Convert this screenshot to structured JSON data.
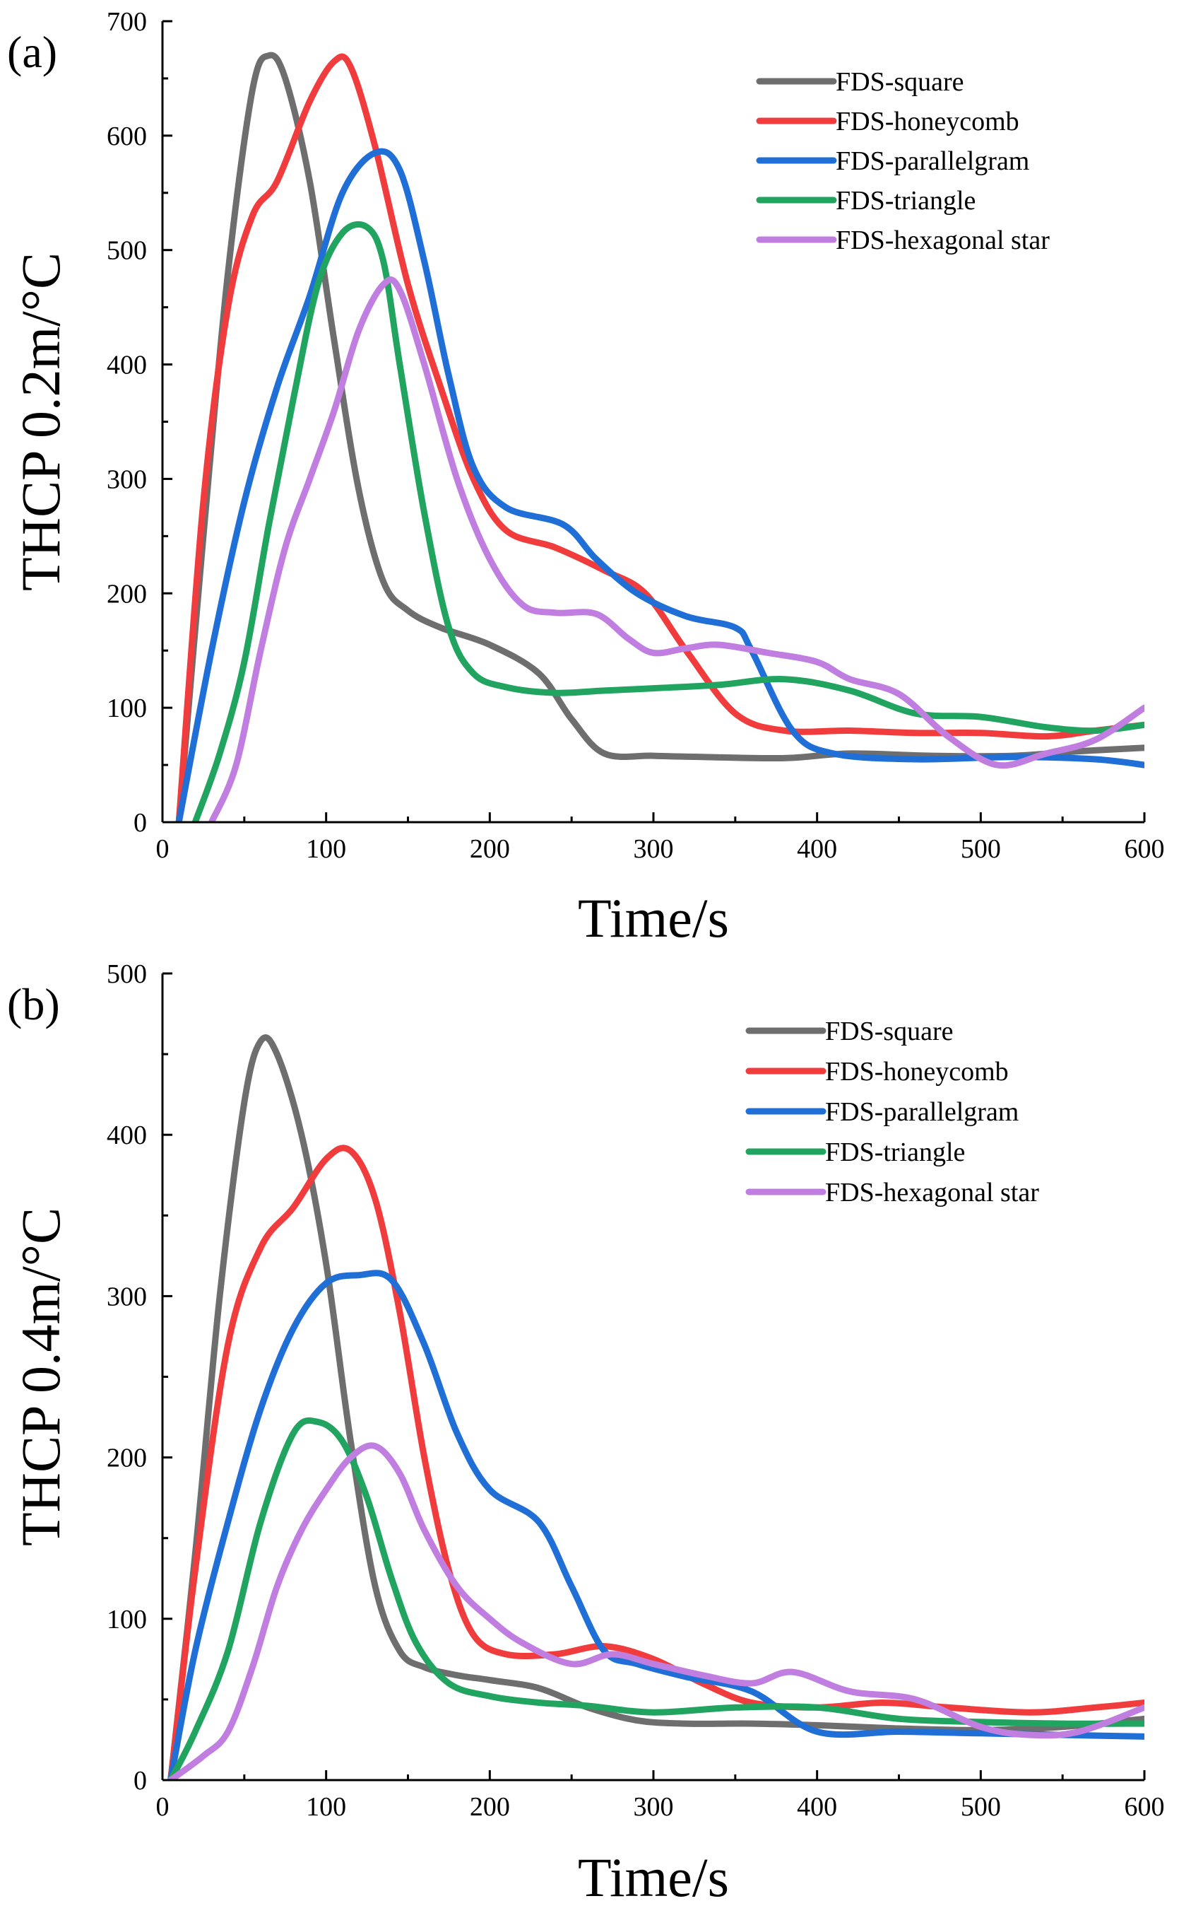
{
  "chart_data": [
    {
      "panel_label": "(a)",
      "type": "line",
      "xlabel": "Time/s",
      "ylabel": "THCP 0.2m/°C",
      "xlim": [
        0,
        600
      ],
      "ylim": [
        0,
        700
      ],
      "xticks": [
        0,
        100,
        200,
        300,
        400,
        500,
        600
      ],
      "yticks": [
        0,
        100,
        200,
        300,
        400,
        500,
        600,
        700
      ],
      "legend_position": "top-right",
      "series": [
        {
          "name": "FDS-square",
          "color": "#6e6e6e",
          "x": [
            10,
            25,
            40,
            55,
            65,
            75,
            90,
            105,
            120,
            135,
            150,
            170,
            200,
            230,
            250,
            270,
            300,
            330,
            380,
            420,
            470,
            520,
            560,
            600
          ],
          "y": [
            0,
            250,
            480,
            640,
            670,
            650,
            560,
            420,
            290,
            210,
            185,
            170,
            155,
            130,
            90,
            60,
            58,
            57,
            56,
            60,
            58,
            58,
            62,
            65
          ]
        },
        {
          "name": "FDS-honeycomb",
          "color": "#f03c3c",
          "x": [
            10,
            25,
            40,
            55,
            70,
            90,
            105,
            115,
            130,
            150,
            170,
            190,
            210,
            240,
            270,
            295,
            320,
            350,
            380,
            420,
            460,
            500,
            540,
            570,
            600
          ],
          "y": [
            0,
            280,
            450,
            530,
            560,
            630,
            665,
            660,
            590,
            470,
            380,
            300,
            255,
            240,
            220,
            200,
            150,
            95,
            80,
            80,
            78,
            78,
            75,
            80,
            85
          ]
        },
        {
          "name": "FDS-parallelgram",
          "color": "#1f6fd6",
          "x": [
            10,
            30,
            50,
            70,
            90,
            110,
            130,
            145,
            160,
            175,
            190,
            210,
            245,
            265,
            290,
            320,
            350,
            360,
            385,
            410,
            460,
            520,
            570,
            600
          ],
          "y": [
            0,
            150,
            280,
            380,
            460,
            550,
            585,
            570,
            490,
            390,
            310,
            275,
            260,
            230,
            200,
            180,
            170,
            150,
            80,
            60,
            55,
            57,
            55,
            50
          ]
        },
        {
          "name": "FDS-triangle",
          "color": "#21a45f",
          "x": [
            20,
            35,
            50,
            65,
            80,
            95,
            110,
            125,
            135,
            145,
            160,
            175,
            190,
            210,
            240,
            270,
            300,
            340,
            380,
            420,
            460,
            500,
            540,
            570,
            600
          ],
          "y": [
            0,
            60,
            140,
            260,
            370,
            470,
            515,
            520,
            490,
            400,
            270,
            170,
            130,
            118,
            113,
            115,
            117,
            120,
            125,
            115,
            95,
            92,
            83,
            80,
            85
          ]
        },
        {
          "name": "FDS-hexagonal star",
          "color": "#c07ee0",
          "x": [
            30,
            45,
            60,
            75,
            90,
            105,
            120,
            135,
            145,
            160,
            180,
            200,
            220,
            240,
            265,
            285,
            300,
            320,
            340,
            370,
            400,
            420,
            450,
            480,
            510,
            540,
            570,
            600
          ],
          "y": [
            0,
            50,
            150,
            240,
            300,
            360,
            430,
            470,
            465,
            400,
            300,
            230,
            190,
            183,
            182,
            160,
            148,
            152,
            155,
            148,
            140,
            125,
            112,
            75,
            50,
            60,
            72,
            100
          ]
        }
      ]
    },
    {
      "panel_label": "(b)",
      "type": "line",
      "xlabel": "Time/s",
      "ylabel": "THCP 0.4m/°C",
      "xlim": [
        0,
        600
      ],
      "ylim": [
        0,
        500
      ],
      "xticks": [
        0,
        100,
        200,
        300,
        400,
        500,
        600
      ],
      "yticks": [
        0,
        100,
        200,
        300,
        400,
        500
      ],
      "legend_position": "top-right",
      "series": [
        {
          "name": "FDS-square",
          "color": "#6e6e6e",
          "x": [
            5,
            20,
            35,
            50,
            60,
            70,
            85,
            100,
            115,
            130,
            145,
            160,
            180,
            200,
            230,
            260,
            290,
            320,
            360,
            400,
            450,
            500,
            550,
            600
          ],
          "y": [
            0,
            140,
            300,
            420,
            458,
            450,
            400,
            320,
            210,
            120,
            80,
            70,
            65,
            62,
            57,
            45,
            37,
            35,
            35,
            34,
            32,
            31,
            33,
            38
          ]
        },
        {
          "name": "FDS-honeycomb",
          "color": "#f03c3c",
          "x": [
            5,
            20,
            40,
            60,
            80,
            100,
            115,
            130,
            145,
            160,
            175,
            190,
            210,
            240,
            270,
            300,
            330,
            360,
            400,
            440,
            480,
            530,
            570,
            600
          ],
          "y": [
            0,
            130,
            270,
            330,
            355,
            385,
            390,
            360,
            290,
            200,
            130,
            90,
            78,
            78,
            83,
            75,
            60,
            48,
            45,
            48,
            45,
            42,
            45,
            48
          ]
        },
        {
          "name": "FDS-parallelgram",
          "color": "#1f6fd6",
          "x": [
            5,
            20,
            40,
            60,
            80,
            100,
            120,
            140,
            160,
            180,
            200,
            230,
            250,
            270,
            290,
            320,
            360,
            400,
            450,
            500,
            550,
            600
          ],
          "y": [
            0,
            80,
            160,
            230,
            280,
            308,
            313,
            310,
            270,
            215,
            180,
            160,
            120,
            80,
            72,
            64,
            55,
            30,
            30,
            29,
            28,
            27
          ]
        },
        {
          "name": "FDS-triangle",
          "color": "#21a45f",
          "x": [
            5,
            20,
            40,
            60,
            80,
            95,
            110,
            125,
            140,
            155,
            175,
            200,
            230,
            260,
            300,
            350,
            400,
            450,
            500,
            550,
            600
          ],
          "y": [
            0,
            30,
            80,
            160,
            215,
            222,
            210,
            175,
            125,
            85,
            60,
            52,
            48,
            46,
            42,
            45,
            45,
            38,
            36,
            35,
            35
          ]
        },
        {
          "name": "FDS-hexagonal star",
          "color": "#c07ee0",
          "x": [
            5,
            25,
            40,
            55,
            70,
            85,
            100,
            115,
            130,
            145,
            160,
            180,
            200,
            220,
            250,
            275,
            300,
            330,
            360,
            385,
            420,
            460,
            500,
            530,
            560,
            600
          ],
          "y": [
            0,
            15,
            30,
            70,
            120,
            155,
            180,
            200,
            207,
            190,
            155,
            120,
            100,
            85,
            72,
            78,
            72,
            65,
            60,
            67,
            55,
            50,
            33,
            28,
            30,
            45
          ]
        }
      ]
    }
  ]
}
